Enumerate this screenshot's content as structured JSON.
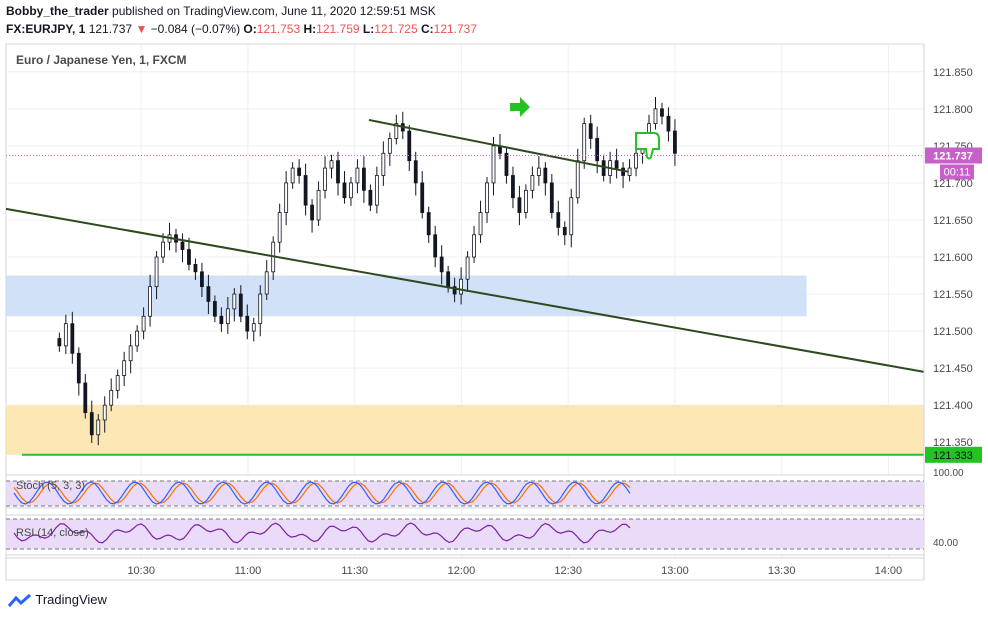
{
  "header": {
    "author": "Bobby_the_trader",
    "published": " published on TradingView.com, June 11, 2020 12:59:51 MSK",
    "symbol": "FX:EURJPY, 1",
    "price": "121.737",
    "change_arrow": "▼",
    "change": "−0.084 (−0.07%)",
    "o_label": "O:",
    "o": "121.753",
    "h_label": "H:",
    "h": "121.759",
    "l_label": "L:",
    "l": "121.725",
    "c_label": "C:",
    "c": "121.737"
  },
  "chart_title": "Euro / Japanese Yen, 1, FXCM",
  "indicators": {
    "stoch_label": "Stoch (5, 3, 3)",
    "stoch_tick": "100.00",
    "rsi_label": "RSI (14, close)",
    "rsi_tick": "40.00"
  },
  "footer": {
    "brand": "TradingView"
  },
  "colors": {
    "up": "#131722",
    "down": "#131722",
    "trendline": "#2e4a1f",
    "blue_zone": "#c9dcf7",
    "orange_zone": "#fbe3a8",
    "support": "#22c322",
    "price_tag": "#c760c9",
    "stoch_fill": "#eadcf8",
    "stoch_k": "#2962ff",
    "stoch_d": "#ff6d00",
    "rsi_line": "#7b1fa2",
    "arrow": "#22c322"
  },
  "chart_data": {
    "type": "candlestick",
    "symbol": "EURJPY",
    "interval": "1",
    "y_ticks": [
      "121.850",
      "121.800",
      "121.750",
      "121.700",
      "121.650",
      "121.600",
      "121.550",
      "121.500",
      "121.450",
      "121.400",
      "121.350"
    ],
    "x_ticks": [
      "10:30",
      "11:00",
      "11:30",
      "12:00",
      "12:30",
      "13:00",
      "13:30",
      "14:00"
    ],
    "last_price": "121.737",
    "countdown": "00:11",
    "support_level": "121.333",
    "candles_close": [
      121.48,
      121.51,
      121.47,
      121.43,
      121.39,
      121.36,
      121.38,
      121.4,
      121.42,
      121.44,
      121.46,
      121.48,
      121.5,
      121.52,
      121.56,
      121.6,
      121.62,
      121.63,
      121.62,
      121.61,
      121.59,
      121.58,
      121.56,
      121.54,
      121.52,
      121.51,
      121.53,
      121.55,
      121.52,
      121.5,
      121.51,
      121.55,
      121.58,
      121.62,
      121.66,
      121.7,
      121.72,
      121.71,
      121.67,
      121.65,
      121.69,
      121.72,
      121.73,
      121.7,
      121.68,
      121.7,
      121.72,
      121.69,
      121.67,
      121.71,
      121.74,
      121.76,
      121.78,
      121.77,
      121.73,
      121.7,
      121.66,
      121.63,
      121.6,
      121.58,
      121.56,
      121.55,
      121.57,
      121.6,
      121.63,
      121.66,
      121.7,
      121.75,
      121.74,
      121.71,
      121.68,
      121.66,
      121.69,
      121.71,
      121.72,
      121.7,
      121.66,
      121.64,
      121.63,
      121.68,
      121.73,
      121.78,
      121.76,
      121.73,
      121.71,
      121.73,
      121.72,
      121.71,
      121.72,
      121.74,
      121.76,
      121.78,
      121.8,
      121.79,
      121.77,
      121.74
    ],
    "trendlines": [
      {
        "from": [
          "09:52",
          121.665
        ],
        "to": [
          "14:10",
          121.445
        ]
      },
      {
        "from": [
          "11:34",
          121.785
        ],
        "to": [
          "12:47",
          121.715
        ]
      }
    ],
    "zones": [
      {
        "label": "blue",
        "low": 121.52,
        "high": 121.575,
        "from": "09:52",
        "to": "13:37"
      },
      {
        "label": "orange",
        "low": 121.333,
        "high": 121.4,
        "from": "09:52",
        "to": "14:10"
      }
    ],
    "stoch": {
      "level_hi": 80,
      "level_lo": 20
    },
    "rsi": {
      "level_hi": 70,
      "level_lo": 30
    }
  }
}
